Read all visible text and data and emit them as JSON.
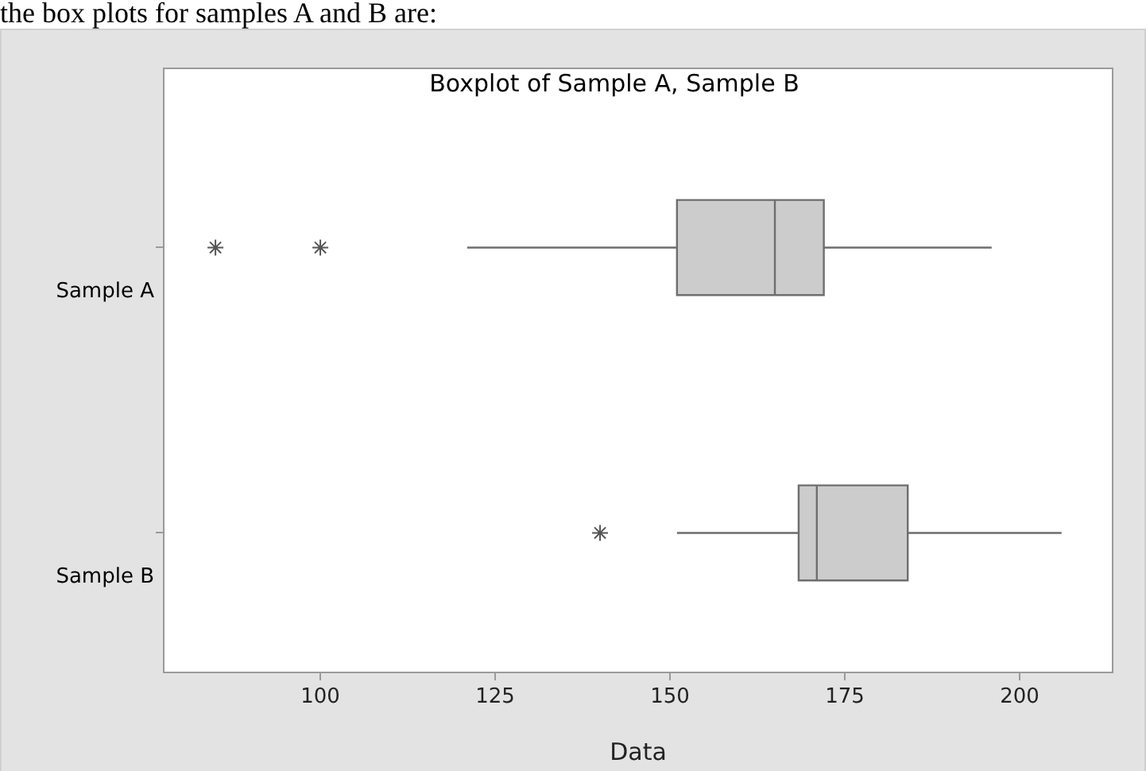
{
  "chart_data": {
    "type": "box",
    "orientation": "horizontal",
    "title": "Boxplot of Sample A, Sample B",
    "xlabel": "Data",
    "annotations": [
      "the box plots for samples A and B are:"
    ],
    "categories": [
      "Sample A",
      "Sample B"
    ],
    "boxes": [
      {
        "low": 121,
        "q1": 151,
        "median": 165,
        "q3": 172,
        "high": 196,
        "outliers": [
          85,
          100
        ]
      },
      {
        "low": 151,
        "q1": 168.4,
        "median": 171,
        "q3": 184,
        "high": 206,
        "outliers": [
          140
        ]
      }
    ],
    "color": "#cccccc",
    "marker": "star",
    "grid": false,
    "legend": false,
    "xlim": [
      77.6,
      213.3
    ],
    "xticks": [
      100,
      125,
      150,
      175,
      200
    ]
  }
}
